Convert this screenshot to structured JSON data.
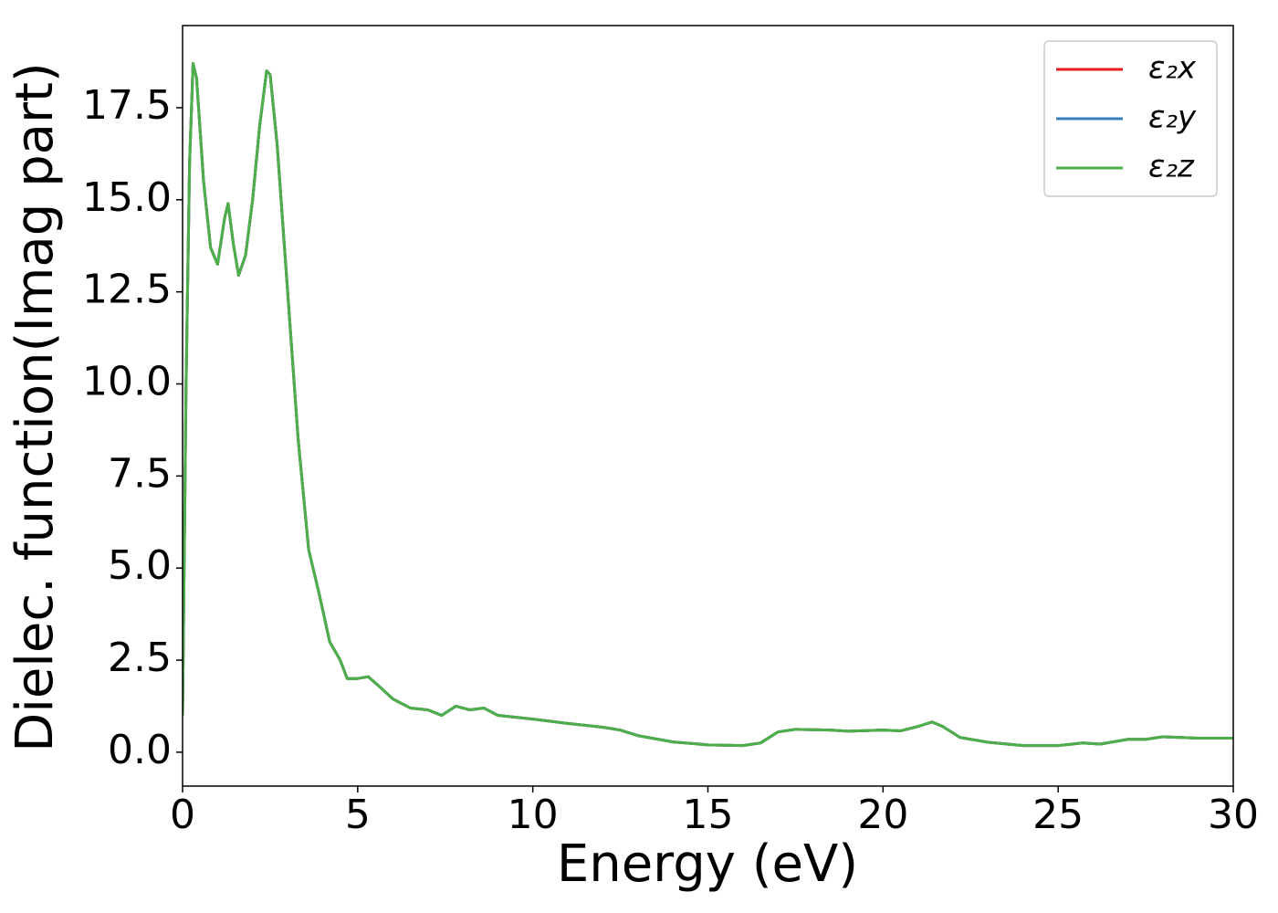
{
  "chart_data": {
    "type": "line",
    "xlabel": "Energy (eV)",
    "ylabel": "Dielec. function(Imag part)",
    "x": [
      0.0,
      0.1,
      0.2,
      0.3,
      0.4,
      0.6,
      0.8,
      1.0,
      1.2,
      1.3,
      1.45,
      1.6,
      1.8,
      2.0,
      2.2,
      2.4,
      2.5,
      2.7,
      3.0,
      3.3,
      3.6,
      3.9,
      4.2,
      4.5,
      4.7,
      5.0,
      5.3,
      5.6,
      6.0,
      6.5,
      7.0,
      7.4,
      7.8,
      8.2,
      8.6,
      9.0,
      10.0,
      11.0,
      12.0,
      12.5,
      13.0,
      14.0,
      15.0,
      16.0,
      16.5,
      17.0,
      17.5,
      18.5,
      19.0,
      20.0,
      20.5,
      21.0,
      21.4,
      21.7,
      22.2,
      23.0,
      24.0,
      25.0,
      25.7,
      26.2,
      27.0,
      27.5,
      28.0,
      29.0,
      30.0
    ],
    "series": [
      {
        "name": "ε₂x",
        "color": "#e41a1c",
        "values": [
          1.0,
          10,
          16,
          18.7,
          18.3,
          15.5,
          13.7,
          13.25,
          14.5,
          14.9,
          13.8,
          12.95,
          13.5,
          15,
          17,
          18.5,
          18.4,
          16.5,
          12.5,
          8.5,
          5.5,
          4.3,
          3.0,
          2.5,
          2.0,
          2.0,
          2.05,
          1.8,
          1.45,
          1.2,
          1.15,
          1.0,
          1.25,
          1.15,
          1.2,
          1.0,
          0.9,
          0.78,
          0.68,
          0.6,
          0.45,
          0.28,
          0.2,
          0.18,
          0.25,
          0.55,
          0.62,
          0.6,
          0.57,
          0.6,
          0.58,
          0.7,
          0.82,
          0.7,
          0.4,
          0.27,
          0.18,
          0.18,
          0.25,
          0.22,
          0.35,
          0.35,
          0.42,
          0.38,
          0.38
        ]
      },
      {
        "name": "ε₂y",
        "color": "#377eb8",
        "values": [
          1.0,
          10,
          16,
          18.7,
          18.3,
          15.5,
          13.7,
          13.25,
          14.5,
          14.9,
          13.8,
          12.95,
          13.5,
          15,
          17,
          18.5,
          18.4,
          16.5,
          12.5,
          8.5,
          5.5,
          4.3,
          3.0,
          2.5,
          2.0,
          2.0,
          2.05,
          1.8,
          1.45,
          1.2,
          1.15,
          1.0,
          1.25,
          1.15,
          1.2,
          1.0,
          0.9,
          0.78,
          0.68,
          0.6,
          0.45,
          0.28,
          0.2,
          0.18,
          0.25,
          0.55,
          0.62,
          0.6,
          0.57,
          0.6,
          0.58,
          0.7,
          0.82,
          0.7,
          0.4,
          0.27,
          0.18,
          0.18,
          0.25,
          0.22,
          0.35,
          0.35,
          0.42,
          0.38,
          0.38
        ]
      },
      {
        "name": "ε₂z",
        "color": "#4daf4a",
        "values": [
          1.0,
          10,
          16,
          18.7,
          18.3,
          15.5,
          13.7,
          13.25,
          14.5,
          14.9,
          13.8,
          12.95,
          13.5,
          15,
          17,
          18.5,
          18.4,
          16.5,
          12.5,
          8.5,
          5.5,
          4.3,
          3.0,
          2.5,
          2.0,
          2.0,
          2.05,
          1.8,
          1.45,
          1.2,
          1.15,
          1.0,
          1.25,
          1.15,
          1.2,
          1.0,
          0.9,
          0.78,
          0.68,
          0.6,
          0.45,
          0.28,
          0.2,
          0.18,
          0.25,
          0.55,
          0.62,
          0.6,
          0.57,
          0.6,
          0.58,
          0.7,
          0.82,
          0.7,
          0.4,
          0.27,
          0.18,
          0.18,
          0.25,
          0.22,
          0.35,
          0.35,
          0.42,
          0.38,
          0.38
        ]
      }
    ],
    "xlim": [
      0,
      30
    ],
    "xticks": [
      0,
      5,
      10,
      15,
      20,
      25,
      30
    ],
    "ylim": [
      -0.92,
      19.73
    ],
    "yticks": [
      {
        "value": 0,
        "label": "0.0"
      },
      2.5,
      {
        "value": 5,
        "label": "5.0"
      },
      7.5,
      {
        "value": 10,
        "label": "10.0"
      },
      12.5,
      {
        "value": 15,
        "label": "15.0"
      },
      17.5
    ],
    "legend": "upper right",
    "grid": false
  }
}
